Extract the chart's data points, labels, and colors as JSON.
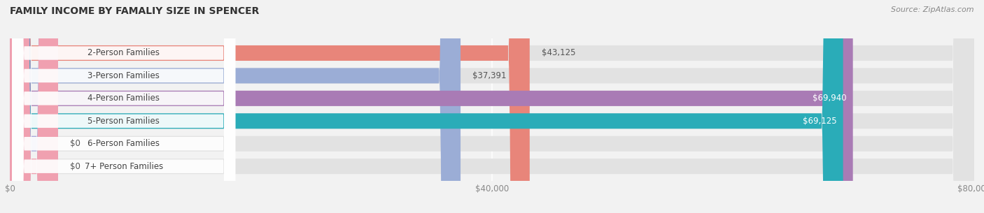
{
  "title": "FAMILY INCOME BY FAMALIY SIZE IN SPENCER",
  "source": "Source: ZipAtlas.com",
  "categories": [
    "2-Person Families",
    "3-Person Families",
    "4-Person Families",
    "5-Person Families",
    "6-Person Families",
    "7+ Person Families"
  ],
  "values": [
    43125,
    37391,
    69940,
    69125,
    0,
    0
  ],
  "display_values": [
    43125,
    37391,
    69940,
    69125,
    4000,
    4000
  ],
  "labels": [
    "$43,125",
    "$37,391",
    "$69,940",
    "$69,125",
    "$0",
    "$0"
  ],
  "bar_colors": [
    "#E8857A",
    "#9BADD6",
    "#A97BB5",
    "#2AACB8",
    "#AAAADD",
    "#F0A0B0"
  ],
  "background_color": "#f2f2f2",
  "bar_bg_color": "#e2e2e2",
  "xlim": [
    0,
    80000
  ],
  "xtick_labels": [
    "$0",
    "$40,000",
    "$80,000"
  ],
  "xtick_vals": [
    0,
    40000,
    80000
  ],
  "figsize": [
    14.06,
    3.05
  ],
  "dpi": 100,
  "bar_height": 0.68,
  "rounding_size": 1800
}
